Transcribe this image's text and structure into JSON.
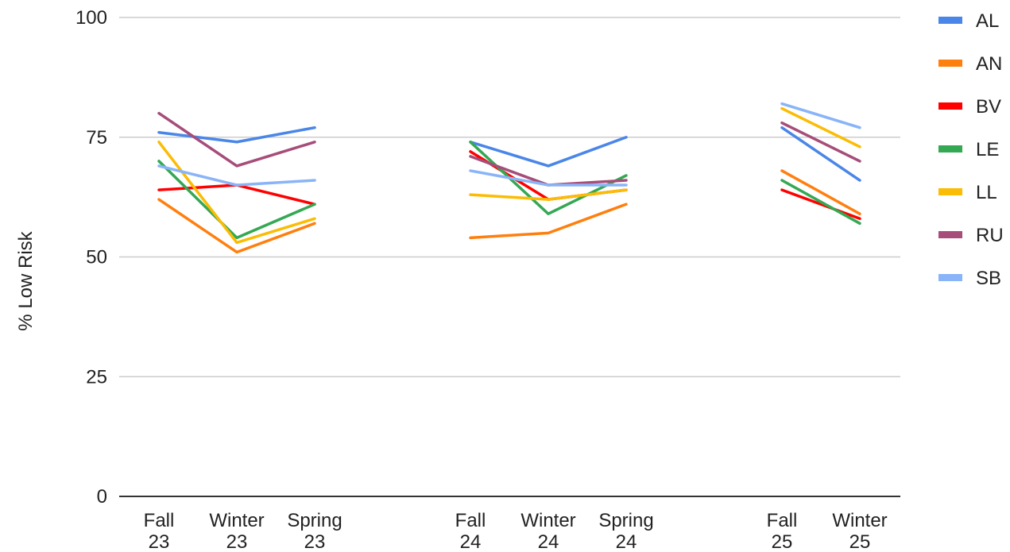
{
  "chart_data": {
    "type": "line",
    "ylabel": "% Low Risk",
    "xlabel": "",
    "ylim": [
      0,
      100
    ],
    "yticks": [
      "0",
      "25",
      "50",
      "75",
      "100"
    ],
    "grid": true,
    "legend_position": "right",
    "categories": [
      {
        "top": "Fall",
        "bottom": "23"
      },
      {
        "top": "Winter",
        "bottom": "23"
      },
      {
        "top": "Spring",
        "bottom": "23"
      },
      {
        "top": "",
        "bottom": ""
      },
      {
        "top": "Fall",
        "bottom": "24"
      },
      {
        "top": "Winter",
        "bottom": "24"
      },
      {
        "top": "Spring",
        "bottom": "24"
      },
      {
        "top": "",
        "bottom": ""
      },
      {
        "top": "Fall",
        "bottom": "25"
      },
      {
        "top": "Winter",
        "bottom": "25"
      }
    ],
    "series": [
      {
        "name": "AL",
        "color": "#4a86e8",
        "values": [
          76,
          74,
          77,
          null,
          74,
          69,
          75,
          null,
          77,
          66
        ]
      },
      {
        "name": "AN",
        "color": "#ff7f0e",
        "values": [
          62,
          51,
          57,
          null,
          54,
          55,
          61,
          null,
          68,
          59
        ]
      },
      {
        "name": "BV",
        "color": "#ff0000",
        "values": [
          64,
          65,
          61,
          null,
          72,
          62,
          64,
          null,
          64,
          58
        ]
      },
      {
        "name": "LE",
        "color": "#34a853",
        "values": [
          70,
          54,
          61,
          null,
          74,
          59,
          67,
          null,
          66,
          57
        ]
      },
      {
        "name": "LL",
        "color": "#fbbc04",
        "values": [
          74,
          53,
          58,
          null,
          63,
          62,
          64,
          null,
          81,
          73
        ]
      },
      {
        "name": "RU",
        "color": "#a64d79",
        "values": [
          80,
          69,
          74,
          null,
          71,
          65,
          66,
          null,
          78,
          70
        ]
      },
      {
        "name": "SB",
        "color": "#8ab4f8",
        "values": [
          69,
          65,
          66,
          null,
          68,
          65,
          65,
          null,
          82,
          77
        ]
      }
    ]
  }
}
